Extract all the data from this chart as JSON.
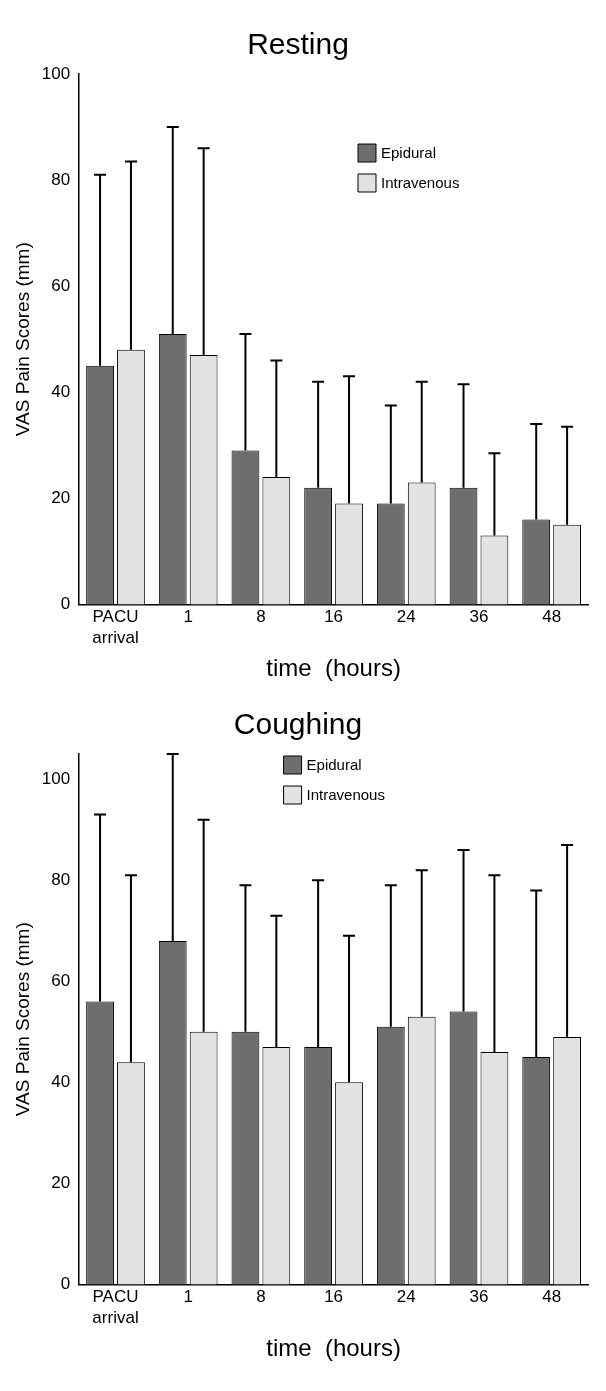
{
  "chart_data": [
    {
      "type": "bar",
      "title": "Resting",
      "xlabel": "time  (hours)",
      "ylabel": "VAS Pain Scores (mm)",
      "categories": [
        "PACU arrival",
        "1",
        "8",
        "16",
        "24",
        "36",
        "48"
      ],
      "ylim": [
        0,
        100
      ],
      "yticks": [
        0,
        20,
        40,
        60,
        80,
        100
      ],
      "grid": false,
      "legend": "top right",
      "series": [
        {
          "name": "Epidural",
          "color": "#6e6e6e",
          "values": [
            45,
            51,
            29,
            22,
            19,
            22,
            16
          ],
          "errors": [
            [
              45,
              81
            ],
            [
              51,
              90
            ],
            [
              29,
              51
            ],
            [
              22,
              42
            ],
            [
              19,
              37.5
            ],
            [
              22,
              41.5
            ],
            [
              16,
              34
            ]
          ]
        },
        {
          "name": "Intravenous",
          "color": "#e2e2e2",
          "values": [
            48,
            47,
            24,
            19,
            23,
            13,
            15
          ],
          "errors": [
            [
              48,
              83.5
            ],
            [
              47,
              86
            ],
            [
              24,
              46
            ],
            [
              19,
              43
            ],
            [
              23,
              42
            ],
            [
              13,
              28.5
            ],
            [
              15,
              33.5
            ]
          ]
        }
      ]
    },
    {
      "type": "bar",
      "title": "Coughing",
      "xlabel": "time  (hours)",
      "ylabel": "VAS Pain Scores (mm)",
      "categories": [
        "PACU arrival",
        "1",
        "8",
        "16",
        "24",
        "36",
        "48"
      ],
      "ylim": [
        0,
        105
      ],
      "yticks": [
        0,
        20,
        40,
        60,
        80,
        100
      ],
      "grid": false,
      "legend": "top",
      "series": [
        {
          "name": "Epidural",
          "color": "#6e6e6e",
          "values": [
            56,
            68,
            50,
            47,
            51,
            54,
            45
          ],
          "errors": [
            [
              56,
              93
            ],
            [
              68,
              105
            ],
            [
              50,
              79
            ],
            [
              47,
              80
            ],
            [
              51,
              79
            ],
            [
              54,
              86
            ],
            [
              45,
              78
            ]
          ]
        },
        {
          "name": "Intravenous",
          "color": "#e2e2e2",
          "values": [
            44,
            50,
            47,
            40,
            53,
            46,
            49
          ],
          "errors": [
            [
              44,
              81
            ],
            [
              50,
              92
            ],
            [
              47,
              73
            ],
            [
              40,
              69
            ],
            [
              53,
              82
            ],
            [
              46,
              81
            ],
            [
              49,
              87
            ]
          ]
        }
      ]
    }
  ]
}
